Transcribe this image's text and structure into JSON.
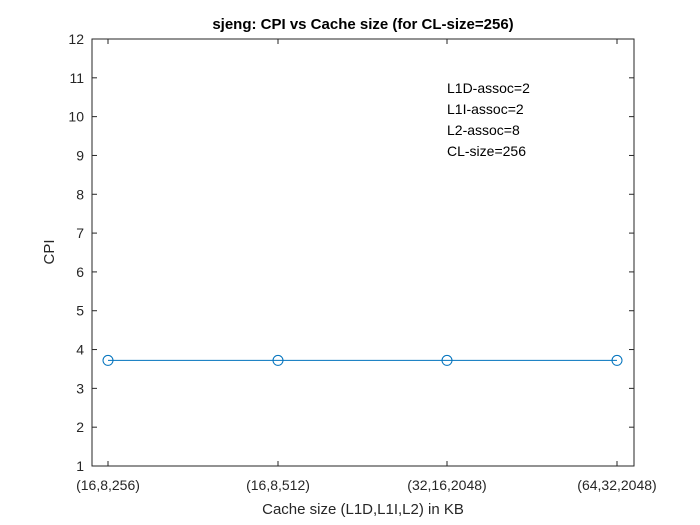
{
  "chart_data": {
    "type": "line",
    "title": "sjeng: CPI vs Cache size (for CL-size=256)",
    "xlabel": "Cache size (L1D,L1I,L2) in KB",
    "ylabel": "CPI",
    "categories": [
      "(16,8,256)",
      "(16,8,512)",
      "(32,16,2048)",
      "(64,32,2048)"
    ],
    "series": [
      {
        "values": [
          3.72,
          3.72,
          3.72,
          3.72
        ],
        "color": "#0072BD",
        "marker": "circle"
      }
    ],
    "ylim": [
      1,
      12
    ],
    "yticks": [
      1,
      2,
      3,
      4,
      5,
      6,
      7,
      8,
      9,
      10,
      11,
      12
    ],
    "grid": false,
    "annotations": [
      "L1D-assoc=2",
      "L1I-assoc=2",
      "L2-assoc=8",
      "CL-size=256"
    ]
  }
}
